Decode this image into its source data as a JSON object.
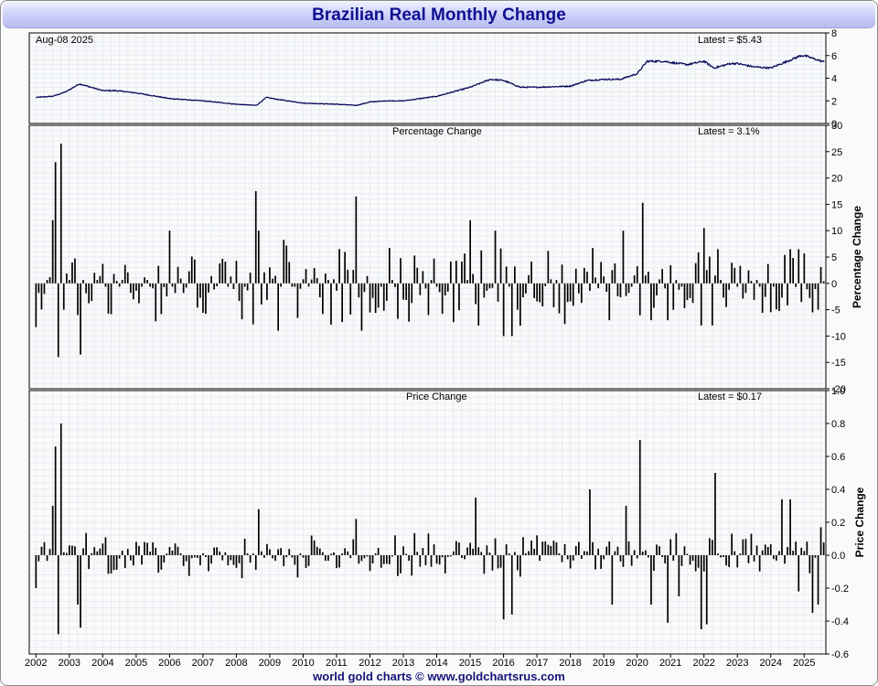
{
  "title": "Brazilian Real Monthly Change",
  "footer": "world gold charts © www.goldchartsrus.com",
  "chart_data": [
    {
      "type": "line",
      "panel": "price",
      "date_label": "Aug-08  2025",
      "latest_label": "Latest = $5.43",
      "ylim": [
        0,
        8
      ],
      "yticks": [
        "0",
        "2",
        "4",
        "6",
        "8"
      ],
      "grid": true,
      "x": [
        2002.0,
        2002.5,
        2002.9,
        2003.3,
        2004.0,
        2004.4,
        2005.0,
        2006.0,
        2007.0,
        2008.0,
        2008.6,
        2008.9,
        2009.3,
        2010.0,
        2011.0,
        2011.6,
        2012.0,
        2012.5,
        2013.0,
        2014.0,
        2015.0,
        2015.6,
        2016.0,
        2016.5,
        2017.0,
        2018.0,
        2018.5,
        2019.0,
        2019.5,
        2020.0,
        2020.3,
        2020.8,
        2021.0,
        2021.5,
        2022.0,
        2022.3,
        2022.8,
        2023.0,
        2023.5,
        2024.0,
        2024.5,
        2024.9,
        2025.0,
        2025.6
      ],
      "values": [
        2.3,
        2.4,
        2.8,
        3.5,
        2.9,
        2.9,
        2.7,
        2.2,
        2.0,
        1.7,
        1.6,
        2.3,
        2.1,
        1.8,
        1.7,
        1.6,
        1.9,
        2.0,
        2.0,
        2.4,
        3.2,
        3.9,
        3.8,
        3.2,
        3.2,
        3.3,
        3.8,
        3.9,
        3.9,
        4.4,
        5.5,
        5.5,
        5.4,
        5.2,
        5.5,
        4.9,
        5.3,
        5.3,
        5.0,
        4.9,
        5.5,
        6.0,
        6.0,
        5.43
      ]
    },
    {
      "type": "bar",
      "panel": "percentage",
      "title": "Percentage Change",
      "latest_label": "Latest = 3.1%",
      "ylabel": "Percentage Change",
      "ylim": [
        -20,
        30
      ],
      "yticks": [
        "-20",
        "-15",
        "-10",
        "-5",
        "0",
        "5",
        "10",
        "15",
        "20",
        "25",
        "30"
      ],
      "grid": true,
      "x": [
        2002.0,
        2002.25,
        2002.5,
        2002.58,
        2002.67,
        2002.75,
        2002.83,
        2003.25,
        2003.33,
        2004.0,
        2006.0,
        2008.6,
        2008.67,
        2008.75,
        2009.25,
        2011.6,
        2011.75,
        2013.75,
        2015.0,
        2015.25,
        2015.75,
        2016.0,
        2016.25,
        2016.4,
        2019.2,
        2019.6,
        2020.2,
        2020.45,
        2020.9,
        2021.9,
        2022.0,
        2022.25,
        2024.6,
        2024.8,
        2025.25,
        2025.4,
        2025.5
      ],
      "values": [
        -8.3,
        -2.0,
        12.0,
        23.0,
        -14.0,
        26.5,
        -5.0,
        -6.0,
        -13.5,
        3.7,
        10.0,
        17.5,
        10.0,
        -4.0,
        -9.0,
        16.5,
        -9.0,
        -6.0,
        12.0,
        -8.0,
        10.0,
        -10.0,
        -10.0,
        -5.0,
        -7.0,
        10.0,
        15.3,
        -7.0,
        -7.0,
        -8.0,
        10.5,
        -8.0,
        6.5,
        6.5,
        -5.5,
        -5.0,
        3.1
      ]
    },
    {
      "type": "bar",
      "panel": "price-change",
      "title": "Price Change",
      "latest_label": "Latest = $0.17",
      "ylabel": "Price Change",
      "ylim": [
        -0.6,
        1.0
      ],
      "yticks": [
        "-0.6",
        "-0.4",
        "-0.2",
        "0.0",
        "0.2",
        "0.4",
        "0.6",
        "0.8",
        "1.0"
      ],
      "grid": true,
      "x": [
        2002.0,
        2002.5,
        2002.58,
        2002.67,
        2002.75,
        2003.25,
        2003.33,
        2008.67,
        2011.6,
        2015.2,
        2016.0,
        2016.25,
        2018.6,
        2019.25,
        2019.7,
        2020.1,
        2020.45,
        2020.9,
        2021.25,
        2021.95,
        2022.1,
        2022.3,
        2024.35,
        2024.6,
        2024.85,
        2025.25,
        2025.4,
        2025.5
      ],
      "values": [
        -0.2,
        0.3,
        0.66,
        -0.48,
        0.8,
        -0.3,
        -0.44,
        0.28,
        0.22,
        0.35,
        -0.39,
        -0.36,
        0.4,
        -0.3,
        0.3,
        0.7,
        -0.3,
        -0.41,
        -0.25,
        -0.45,
        -0.42,
        0.5,
        0.34,
        0.34,
        -0.22,
        -0.35,
        -0.3,
        0.17
      ],
      "xlabels": [
        "2002",
        "2003",
        "2004",
        "2005",
        "2006",
        "2007",
        "2008",
        "2009",
        "2010",
        "2011",
        "2012",
        "2013",
        "2014",
        "2015",
        "2016",
        "2017",
        "2018",
        "2019",
        "2020",
        "2021",
        "2022",
        "2023",
        "2024",
        "2025"
      ]
    }
  ]
}
